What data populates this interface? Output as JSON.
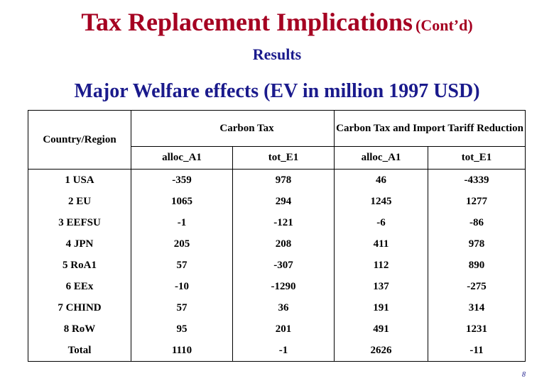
{
  "slide": {
    "title": "Tax Replacement Implications",
    "title_suffix": "(Cont’d)",
    "subtitle": "Results",
    "heading": "Major Welfare effects (EV in million 1997 USD)",
    "page_number": "8"
  },
  "table": {
    "region_header": "Country/Region",
    "group_headers": [
      "Carbon Tax",
      "Carbon Tax and Import Tariff Reduction"
    ],
    "sub_headers": [
      "alloc_A1",
      "tot_E1",
      "alloc_A1",
      "tot_E1"
    ],
    "rows": [
      {
        "region": "1 USA",
        "values": [
          "-359",
          "978",
          "46",
          "-4339"
        ]
      },
      {
        "region": "2 EU",
        "values": [
          "1065",
          "294",
          "1245",
          "1277"
        ]
      },
      {
        "region": "3 EEFSU",
        "values": [
          "-1",
          "-121",
          "-6",
          "-86"
        ]
      },
      {
        "region": "4 JPN",
        "values": [
          "205",
          "208",
          "411",
          "978"
        ]
      },
      {
        "region": "5 RoA1",
        "values": [
          "57",
          "-307",
          "112",
          "890"
        ]
      },
      {
        "region": "6 EEx",
        "values": [
          "-10",
          "-1290",
          "137",
          "-275"
        ]
      },
      {
        "region": "7 CHIND",
        "values": [
          "57",
          "36",
          "191",
          "314"
        ]
      },
      {
        "region": "8 RoW",
        "values": [
          "95",
          "201",
          "491",
          "1231"
        ]
      },
      {
        "region": "Total",
        "values": [
          "1110",
          "-1",
          "2626",
          "-11"
        ]
      }
    ]
  },
  "colors": {
    "title": "#a50021",
    "subtitle": "#1a1a8c"
  }
}
